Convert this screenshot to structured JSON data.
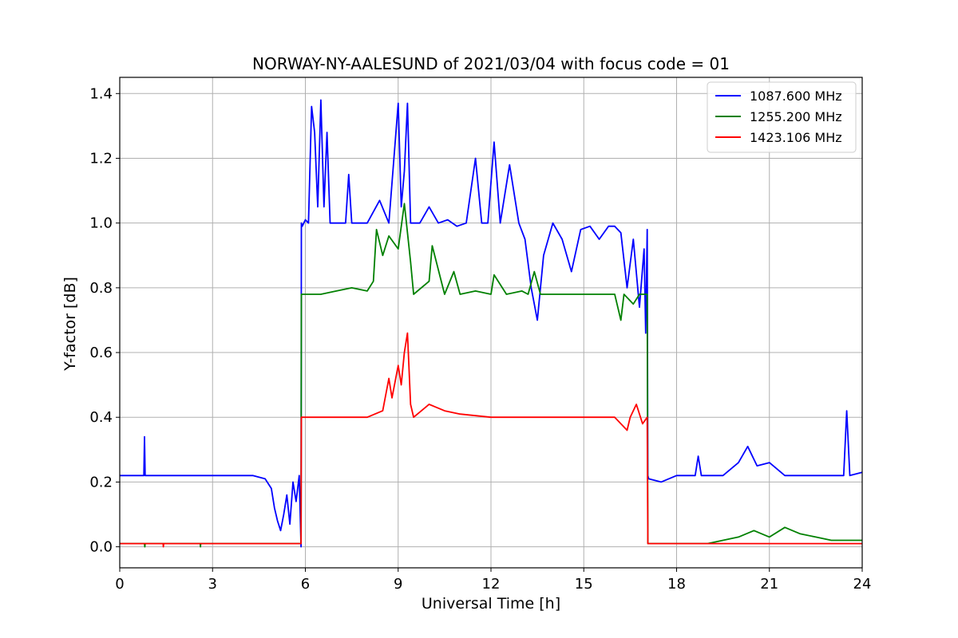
{
  "chart_data": {
    "type": "line",
    "title": "NORWAY-NY-AALESUND of 2021/03/04 with focus code = 01",
    "xlabel": "Universal Time [h]",
    "ylabel": "Y-factor [dB]",
    "xlim": [
      0,
      24
    ],
    "ylim": [
      -0.065,
      1.45
    ],
    "xticks": [
      0,
      3,
      6,
      9,
      12,
      15,
      18,
      21,
      24
    ],
    "yticks": [
      0.0,
      0.2,
      0.4,
      0.6,
      0.8,
      1.0,
      1.2,
      1.4
    ],
    "grid": true,
    "legend_position": "top-right",
    "series": [
      {
        "name": "1087.600 MHz",
        "color": "#0000ff",
        "x": [
          0.0,
          0.6,
          0.78,
          0.8,
          0.82,
          1.5,
          2.5,
          3.5,
          4.3,
          4.7,
          4.9,
          5.0,
          5.1,
          5.2,
          5.3,
          5.4,
          5.5,
          5.6,
          5.7,
          5.8,
          5.86,
          5.87,
          5.9,
          6.0,
          6.1,
          6.2,
          6.3,
          6.4,
          6.5,
          6.6,
          6.7,
          6.8,
          7.0,
          7.3,
          7.4,
          7.5,
          8.0,
          8.4,
          8.7,
          9.0,
          9.1,
          9.2,
          9.3,
          9.4,
          9.5,
          9.7,
          10.0,
          10.3,
          10.6,
          10.9,
          11.2,
          11.5,
          11.7,
          11.9,
          12.1,
          12.3,
          12.6,
          12.9,
          13.1,
          13.3,
          13.5,
          13.7,
          14.0,
          14.3,
          14.6,
          14.9,
          15.2,
          15.5,
          15.8,
          16.0,
          16.2,
          16.4,
          16.6,
          16.8,
          16.95,
          17.0,
          17.05,
          17.07,
          17.1,
          17.5,
          18.0,
          18.6,
          18.7,
          18.8,
          19.5,
          20.0,
          20.3,
          20.6,
          21.0,
          21.5,
          22.0,
          23.0,
          23.4,
          23.5,
          23.6,
          24.0
        ],
        "values": [
          0.22,
          0.22,
          0.22,
          0.34,
          0.22,
          0.22,
          0.22,
          0.22,
          0.22,
          0.21,
          0.18,
          0.12,
          0.08,
          0.05,
          0.1,
          0.16,
          0.07,
          0.2,
          0.14,
          0.22,
          0.0,
          1.0,
          0.99,
          1.01,
          1.0,
          1.36,
          1.28,
          1.05,
          1.38,
          1.05,
          1.28,
          1.0,
          1.0,
          1.0,
          1.15,
          1.0,
          1.0,
          1.07,
          1.0,
          1.37,
          1.05,
          1.16,
          1.37,
          1.0,
          1.0,
          1.0,
          1.05,
          1.0,
          1.01,
          0.99,
          1.0,
          1.2,
          1.0,
          1.0,
          1.25,
          1.0,
          1.18,
          1.0,
          0.95,
          0.8,
          0.7,
          0.9,
          1.0,
          0.95,
          0.85,
          0.98,
          0.99,
          0.95,
          0.99,
          0.99,
          0.97,
          0.8,
          0.95,
          0.74,
          0.92,
          0.66,
          0.98,
          0.22,
          0.21,
          0.2,
          0.22,
          0.22,
          0.28,
          0.22,
          0.22,
          0.26,
          0.31,
          0.25,
          0.26,
          0.22,
          0.22,
          0.22,
          0.22,
          0.42,
          0.22,
          0.23
        ]
      },
      {
        "name": "1255.200 MHz",
        "color": "#008000",
        "x": [
          0.0,
          0.8,
          0.81,
          0.82,
          2.6,
          2.61,
          2.62,
          5.86,
          5.87,
          5.9,
          6.5,
          7.0,
          7.5,
          8.0,
          8.2,
          8.3,
          8.5,
          8.7,
          9.0,
          9.2,
          9.4,
          9.5,
          10.0,
          10.1,
          10.5,
          10.8,
          11.0,
          11.5,
          12.0,
          12.1,
          12.5,
          13.0,
          13.2,
          13.4,
          13.6,
          14.0,
          15.0,
          16.0,
          16.2,
          16.3,
          16.6,
          16.8,
          17.0,
          17.05,
          17.07,
          17.1,
          18.0,
          19.0,
          19.5,
          20.0,
          20.5,
          21.0,
          21.5,
          22.0,
          22.5,
          23.0,
          23.5,
          24.0
        ],
        "values": [
          0.01,
          0.01,
          0.0,
          0.01,
          0.01,
          0.0,
          0.01,
          0.01,
          0.78,
          0.78,
          0.78,
          0.79,
          0.8,
          0.79,
          0.82,
          0.98,
          0.9,
          0.96,
          0.92,
          1.06,
          0.88,
          0.78,
          0.82,
          0.93,
          0.78,
          0.85,
          0.78,
          0.79,
          0.78,
          0.84,
          0.78,
          0.79,
          0.78,
          0.85,
          0.78,
          0.78,
          0.78,
          0.78,
          0.7,
          0.78,
          0.75,
          0.78,
          0.78,
          0.78,
          0.01,
          0.01,
          0.01,
          0.01,
          0.02,
          0.03,
          0.05,
          0.03,
          0.06,
          0.04,
          0.03,
          0.02,
          0.02,
          0.02
        ]
      },
      {
        "name": "1423.106 MHz",
        "color": "#ff0000",
        "x": [
          0.0,
          1.4,
          1.41,
          1.42,
          5.86,
          5.87,
          6.0,
          7.0,
          8.0,
          8.5,
          8.7,
          8.8,
          9.0,
          9.1,
          9.2,
          9.3,
          9.4,
          9.5,
          10.0,
          10.5,
          11.0,
          12.0,
          13.0,
          14.0,
          15.0,
          16.0,
          16.4,
          16.5,
          16.7,
          16.9,
          17.05,
          17.07,
          17.1,
          18.0,
          24.0
        ],
        "values": [
          0.01,
          0.01,
          0.0,
          0.01,
          0.01,
          0.4,
          0.4,
          0.4,
          0.4,
          0.42,
          0.52,
          0.46,
          0.56,
          0.5,
          0.6,
          0.66,
          0.44,
          0.4,
          0.44,
          0.42,
          0.41,
          0.4,
          0.4,
          0.4,
          0.4,
          0.4,
          0.36,
          0.4,
          0.44,
          0.38,
          0.4,
          0.01,
          0.01,
          0.01,
          0.01
        ]
      }
    ]
  }
}
